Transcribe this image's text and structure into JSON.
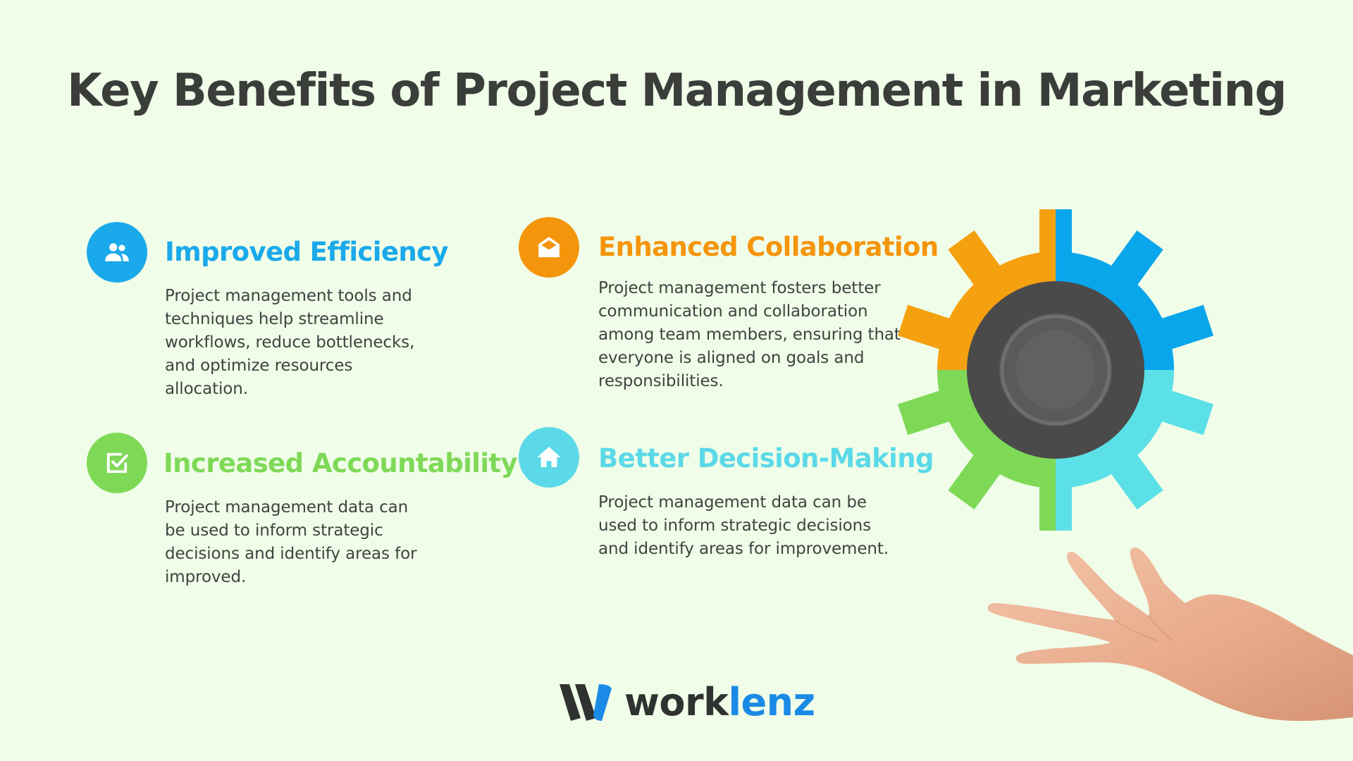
{
  "title": "Key Benefits of Project Management in Marketing",
  "benefits": [
    {
      "heading": "Improved Efficiency",
      "description": "Project management tools and techniques help streamline workflows, reduce bottlenecks, and optimize resources allocation.",
      "color": "#1aa9ea",
      "icon": "users-icon"
    },
    {
      "heading": "Enhanced Collaboration",
      "description": "Project management fosters better communication and collaboration among team members, ensuring that everyone is aligned on goals and responsibilities.",
      "color": "#f5950c",
      "icon": "open-envelope-icon"
    },
    {
      "heading": "Increased Accountability",
      "description": "Project management data can be used to inform strategic decisions and identify areas for improved.",
      "color": "#7ed957",
      "icon": "checkbox-icon"
    },
    {
      "heading": "Better Decision-Making",
      "description": "Project management data can be used to inform strategic decisions and identify areas for improvement.",
      "color": "#5cd9e8",
      "icon": "home-icon"
    }
  ],
  "logo": {
    "part1": "work",
    "part2": "lenz"
  },
  "colors": {
    "background": "#f0fde8",
    "title": "#3b3d3b",
    "gear_orange": "#f5a00f",
    "gear_blue": "#0aa6ec",
    "gear_green": "#7ed957",
    "gear_cyan": "#5ce0e8",
    "gear_hub": "#4a4a4a"
  }
}
